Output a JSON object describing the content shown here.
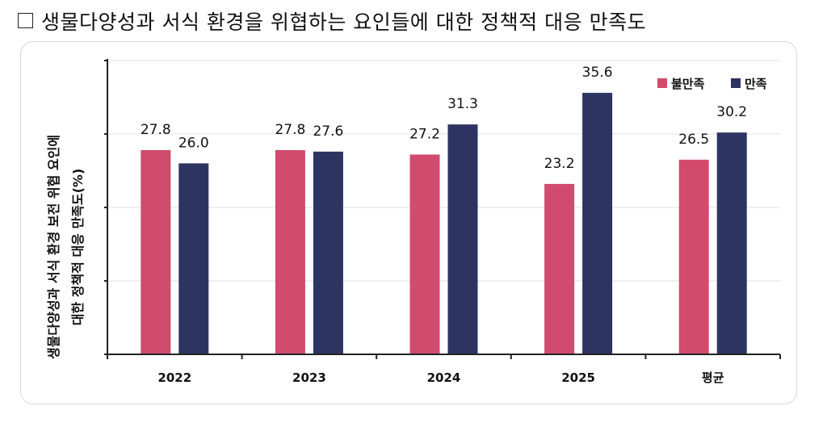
{
  "header": {
    "title": "생물다양성과 서식 환경을 위협하는 요인들에 대한 정책적 대응 만족도"
  },
  "chart_data": {
    "type": "bar",
    "categories": [
      "2022",
      "2023",
      "2024",
      "2025",
      "평균"
    ],
    "series": [
      {
        "name": "불만족",
        "color": "#d14b6e",
        "values": [
          27.8,
          27.8,
          27.2,
          23.2,
          26.5
        ]
      },
      {
        "name": "만족",
        "color": "#2e3461",
        "values": [
          26.0,
          27.6,
          31.3,
          35.6,
          30.2
        ]
      }
    ],
    "ylabel_lines": [
      "생물다양성과 서식 환경 보전 위협 요인에",
      "대한 정책적 대응 만족도(%)"
    ],
    "ylim": [
      0,
      40
    ],
    "y_tick_step": 10,
    "grid": true,
    "legend_position": "top-right",
    "value_labels": true
  }
}
